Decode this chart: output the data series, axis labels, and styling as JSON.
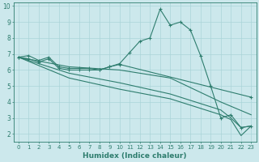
{
  "xlabel": "Humidex (Indice chaleur)",
  "bg_color": "#cce8ec",
  "line_color": "#2e7d6e",
  "grid_color": "#aad4d8",
  "xlim": [
    -0.5,
    23.5
  ],
  "ylim": [
    1.5,
    10.2
  ],
  "xticks": [
    0,
    1,
    2,
    3,
    4,
    5,
    6,
    7,
    8,
    9,
    10,
    11,
    12,
    13,
    14,
    15,
    16,
    17,
    18,
    19,
    20,
    21,
    22,
    23
  ],
  "yticks": [
    2,
    3,
    4,
    5,
    6,
    7,
    8,
    9,
    10
  ],
  "series1": [
    [
      0,
      6.8
    ],
    [
      1,
      6.9
    ],
    [
      2,
      6.6
    ],
    [
      3,
      6.8
    ],
    [
      4,
      6.2
    ],
    [
      5,
      6.1
    ],
    [
      6,
      6.1
    ],
    [
      7,
      6.1
    ],
    [
      8,
      6.0
    ],
    [
      9,
      6.2
    ],
    [
      10,
      6.4
    ],
    [
      11,
      7.1
    ],
    [
      12,
      7.8
    ],
    [
      13,
      8.0
    ],
    [
      14,
      9.8
    ],
    [
      15,
      8.8
    ],
    [
      16,
      9.0
    ],
    [
      17,
      8.5
    ],
    [
      18,
      6.9
    ],
    [
      19,
      5.0
    ],
    [
      20,
      3.0
    ],
    [
      21,
      3.2
    ],
    [
      22,
      2.4
    ],
    [
      23,
      2.5
    ]
  ],
  "series2": [
    [
      0,
      6.8
    ],
    [
      1,
      6.7
    ],
    [
      2,
      6.5
    ],
    [
      3,
      6.7
    ],
    [
      4,
      6.1
    ],
    [
      5,
      6.0
    ],
    [
      6,
      6.0
    ],
    [
      7,
      6.0
    ],
    [
      8,
      6.0
    ],
    [
      9,
      6.2
    ],
    [
      10,
      6.35
    ],
    [
      23,
      4.3
    ]
  ],
  "series3": [
    [
      0,
      6.8
    ],
    [
      5,
      6.2
    ],
    [
      10,
      6.0
    ],
    [
      15,
      5.5
    ],
    [
      20,
      4.0
    ],
    [
      23,
      3.2
    ]
  ],
  "series4": [
    [
      0,
      6.8
    ],
    [
      5,
      5.8
    ],
    [
      10,
      5.2
    ],
    [
      15,
      4.5
    ],
    [
      20,
      3.5
    ],
    [
      21,
      3.0
    ],
    [
      22,
      2.4
    ],
    [
      23,
      2.5
    ]
  ],
  "series5": [
    [
      0,
      6.8
    ],
    [
      5,
      5.5
    ],
    [
      10,
      4.8
    ],
    [
      15,
      4.2
    ],
    [
      20,
      3.2
    ],
    [
      21,
      2.9
    ],
    [
      22,
      1.9
    ],
    [
      23,
      2.5
    ]
  ]
}
